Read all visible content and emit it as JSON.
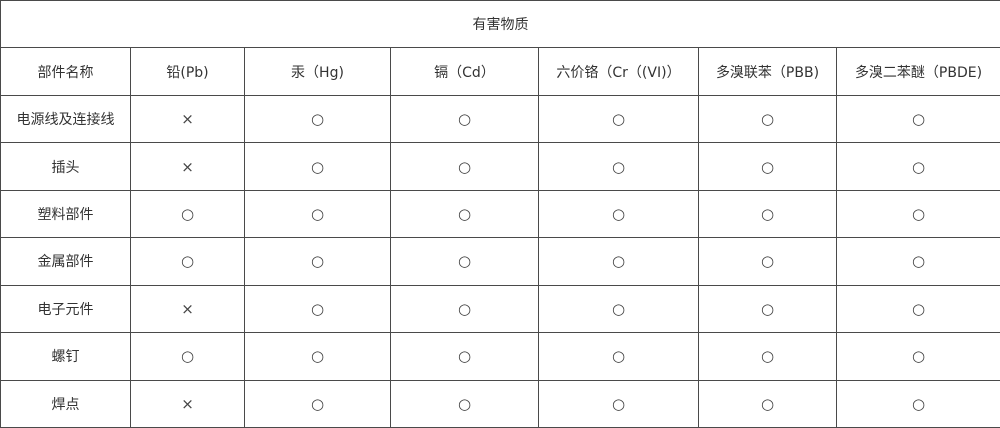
{
  "title": "有害物质",
  "headers": [
    "部件名称",
    "铅(Pb)",
    "汞（Hg)",
    "镉（Cd）",
    "六价铬（Cr（(VI)）",
    "多溴联苯（PBB)",
    "多溴二苯醚（PBDE)"
  ],
  "rows": [
    {
      "part": "电源线及连接线",
      "values": [
        "×",
        "○",
        "○",
        "○",
        "○",
        "○"
      ]
    },
    {
      "part": "插头",
      "values": [
        "×",
        "○",
        "○",
        "○",
        "○",
        "○"
      ]
    },
    {
      "part": "塑料部件",
      "values": [
        "○",
        "○",
        "○",
        "○",
        "○",
        "○"
      ]
    },
    {
      "part": "金属部件",
      "values": [
        "○",
        "○",
        "○",
        "○",
        "○",
        "○"
      ]
    },
    {
      "part": "电子元件",
      "values": [
        "×",
        "○",
        "○",
        "○",
        "○",
        "○"
      ]
    },
    {
      "part": "螺钉",
      "values": [
        "○",
        "○",
        "○",
        "○",
        "○",
        "○"
      ]
    },
    {
      "part": "焊点",
      "values": [
        "×",
        "○",
        "○",
        "○",
        "○",
        "○"
      ]
    }
  ]
}
